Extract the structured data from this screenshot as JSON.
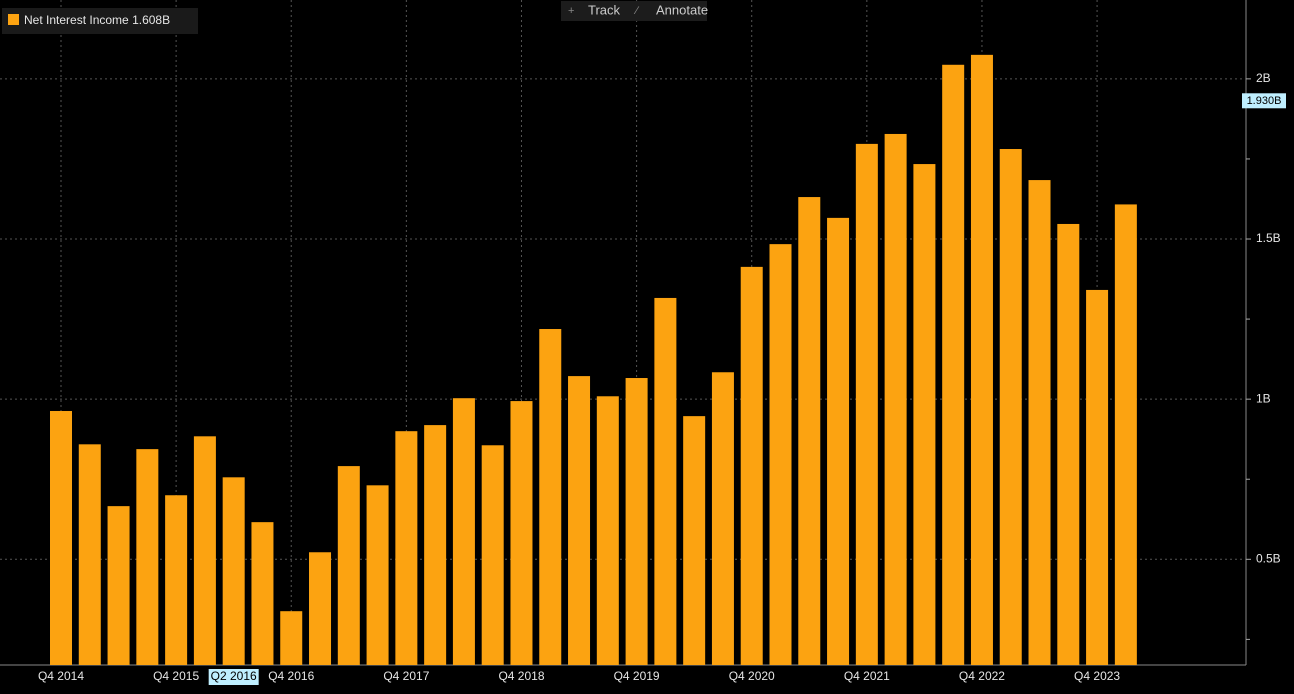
{
  "chart_data": {
    "type": "bar",
    "series": [
      {
        "name": "Net Interest Income",
        "color": "#fca311",
        "legend_label": "1.608B",
        "values": [
          0.963,
          0.859,
          0.666,
          0.844,
          0.7,
          0.884,
          0.756,
          0.616,
          0.338,
          0.522,
          0.791,
          0.731,
          0.9,
          0.919,
          1.003,
          0.856,
          0.994,
          1.219,
          1.072,
          1.009,
          1.066,
          1.316,
          0.947,
          1.084,
          1.413,
          1.484,
          1.631,
          1.566,
          1.797,
          1.828,
          1.734,
          2.044,
          2.075,
          1.781,
          1.684,
          1.547,
          1.341,
          1.608
        ]
      }
    ],
    "categories": [
      "Q4 2014",
      null,
      null,
      null,
      "Q4 2015",
      null,
      "Q2 2016",
      null,
      "Q4 2016",
      null,
      null,
      null,
      "Q4 2017",
      null,
      null,
      null,
      "Q4 2018",
      null,
      null,
      null,
      "Q4 2019",
      null,
      null,
      null,
      "Q4 2020",
      null,
      null,
      null,
      "Q4 2021",
      null,
      null,
      null,
      "Q4 2022",
      null,
      null,
      null,
      "Q4 2023",
      null
    ],
    "ylim": [
      0.17,
      2.24
    ],
    "yticks": [
      {
        "value": 0.5,
        "label": "0.5B"
      },
      {
        "value": 1,
        "label": "1B"
      },
      {
        "value": 1.5,
        "label": "1.5B"
      },
      {
        "value": 2,
        "label": "2B"
      }
    ],
    "yticks_minor": [
      0.25,
      0.75,
      1.25,
      1.75
    ],
    "grid": true,
    "cursor": {
      "category": 6,
      "y": 1.93,
      "y_label": "1.930B"
    },
    "toolbar": [
      "Track",
      "Annotate"
    ]
  }
}
